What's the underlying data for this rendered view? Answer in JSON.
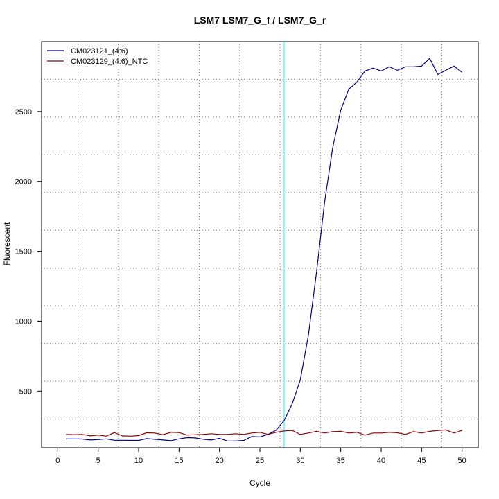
{
  "chart_data": {
    "type": "line",
    "title": "LSM7  LSM7_G_f / LSM7_G_r",
    "xlabel": "Cycle",
    "ylabel": "Fluorescent",
    "xlim": [
      -2,
      52
    ],
    "ylim": [
      95,
      3000
    ],
    "x_ticks": [
      0,
      5,
      10,
      15,
      20,
      25,
      30,
      35,
      40,
      45,
      50
    ],
    "y_ticks": [
      500,
      1000,
      1500,
      2000,
      2500
    ],
    "grid": "dotted",
    "legend_position": "top-left",
    "threshold_cycle": 28,
    "threshold_color": "#00ffff",
    "series": [
      {
        "name": "CM023121_(4:6)",
        "color": "#000080",
        "x": [
          1,
          2,
          3,
          4,
          5,
          6,
          7,
          8,
          9,
          10,
          11,
          12,
          13,
          14,
          15,
          16,
          17,
          18,
          19,
          20,
          21,
          22,
          23,
          24,
          25,
          26,
          27,
          28,
          29,
          30,
          31,
          32,
          33,
          34,
          35,
          36,
          37,
          38,
          39,
          40,
          41,
          42,
          43,
          44,
          45,
          46,
          47,
          48,
          49,
          50
        ],
        "values": [
          158,
          158,
          157,
          150,
          153,
          158,
          148,
          148,
          147,
          147,
          160,
          155,
          150,
          145,
          158,
          167,
          165,
          155,
          150,
          162,
          143,
          143,
          147,
          175,
          172,
          190,
          220,
          290,
          410,
          580,
          900,
          1350,
          1850,
          2240,
          2510,
          2660,
          2710,
          2790,
          2810,
          2790,
          2820,
          2795,
          2820,
          2820,
          2825,
          2880,
          2765,
          2795,
          2825,
          2780
        ]
      },
      {
        "name": "CM023129_(4:6)_NTC",
        "color": "#8b0000",
        "x": [
          1,
          2,
          3,
          4,
          5,
          6,
          7,
          8,
          9,
          10,
          11,
          12,
          13,
          14,
          15,
          16,
          17,
          18,
          19,
          20,
          21,
          22,
          23,
          24,
          25,
          26,
          27,
          28,
          29,
          30,
          31,
          32,
          33,
          34,
          35,
          36,
          37,
          38,
          39,
          40,
          41,
          42,
          43,
          44,
          45,
          46,
          47,
          48,
          49,
          50
        ],
        "values": [
          190,
          188,
          190,
          180,
          185,
          178,
          203,
          180,
          178,
          182,
          202,
          200,
          188,
          205,
          203,
          185,
          188,
          190,
          195,
          190,
          190,
          195,
          190,
          200,
          205,
          190,
          205,
          215,
          218,
          190,
          200,
          212,
          200,
          210,
          212,
          200,
          205,
          185,
          200,
          200,
          205,
          202,
          190,
          210,
          200,
          212,
          218,
          222,
          200,
          218
        ]
      }
    ]
  }
}
